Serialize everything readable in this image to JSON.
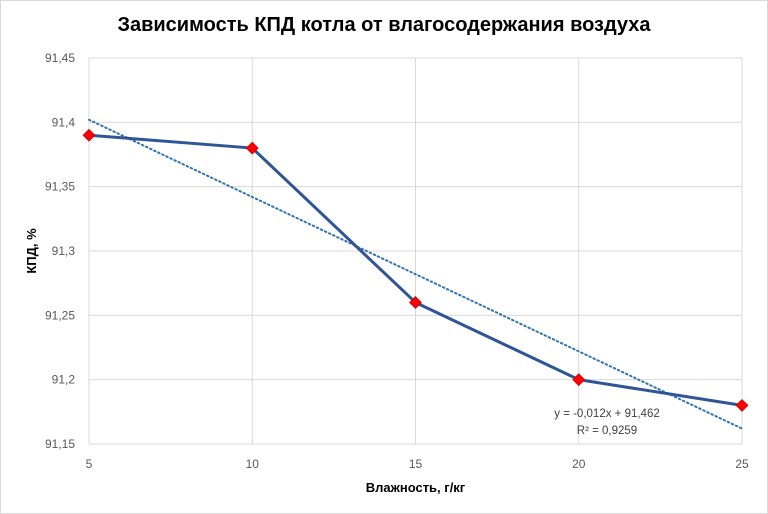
{
  "chart_data": {
    "type": "line",
    "title": "Зависимость КПД котла от влагосодержания воздуха",
    "xlabel": "Влажность, г/кг",
    "ylabel": "КПД, %",
    "x": [
      5,
      10,
      15,
      20,
      25
    ],
    "series": [
      {
        "values": [
          91.39,
          91.38,
          91.26,
          91.2,
          91.18
        ]
      }
    ],
    "xlim": [
      5,
      25
    ],
    "ylim": [
      91.15,
      91.45
    ],
    "x_ticks": [
      "5",
      "10",
      "15",
      "20",
      "25"
    ],
    "y_ticks": [
      "91,15",
      "91,2",
      "91,25",
      "91,3",
      "91,35",
      "91,4",
      "91,45"
    ],
    "trendline": {
      "type": "linear",
      "slope": -0.012,
      "intercept": 91.462,
      "equation": "y = -0,012x + 91,462",
      "r_squared": "R² = 0,9259"
    },
    "grid": true,
    "legend": "none",
    "colors": {
      "line": "#2f5597",
      "marker": "#ff0000",
      "trend": "#2e75b6",
      "grid": "#d9d9d9"
    }
  }
}
